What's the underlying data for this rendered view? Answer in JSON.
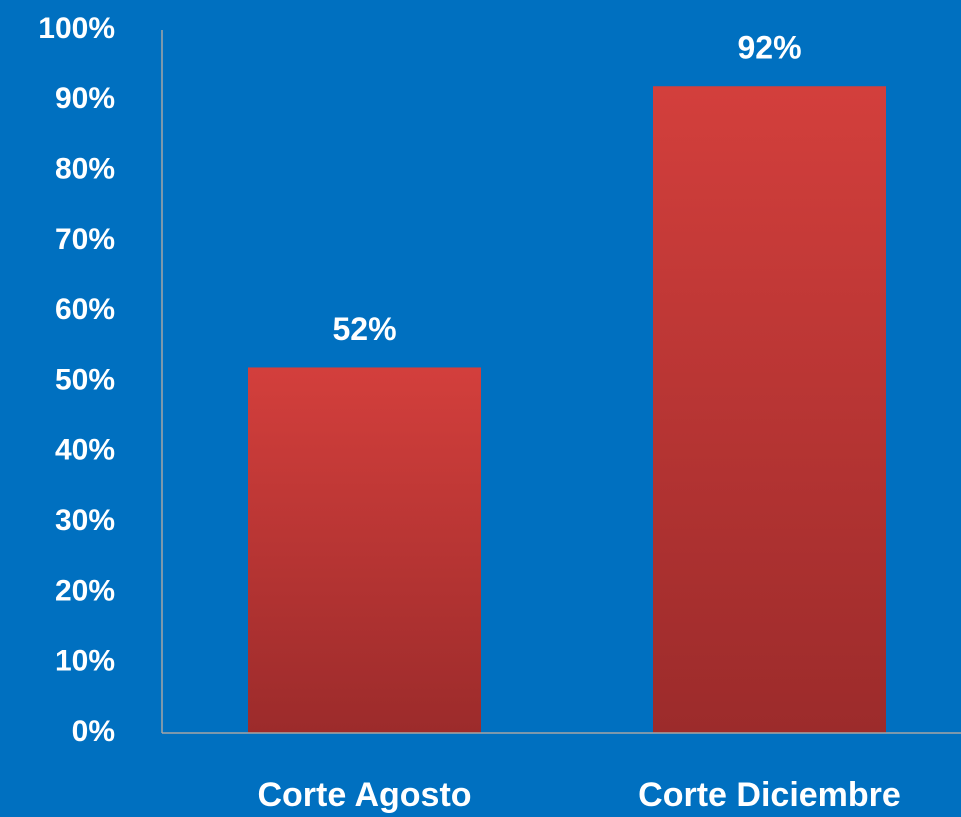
{
  "chart_data": {
    "type": "bar",
    "categories": [
      "Corte Agosto",
      "Corte Diciembre"
    ],
    "values": [
      52,
      92
    ],
    "value_labels": [
      "52%",
      "92%"
    ],
    "color": "#c83a37",
    "ylim": [
      0,
      100
    ],
    "yticks": [
      {
        "value": 0,
        "label": "0%"
      },
      {
        "value": 10,
        "label": "10%"
      },
      {
        "value": 20,
        "label": "20%"
      },
      {
        "value": 30,
        "label": "30%"
      },
      {
        "value": 40,
        "label": "40%"
      },
      {
        "value": 50,
        "label": "50%"
      },
      {
        "value": 60,
        "label": "60%"
      },
      {
        "value": 70,
        "label": "70%"
      },
      {
        "value": 80,
        "label": "80%"
      },
      {
        "value": 90,
        "label": "90%"
      },
      {
        "value": 100,
        "label": "100%"
      }
    ],
    "grid": false
  }
}
